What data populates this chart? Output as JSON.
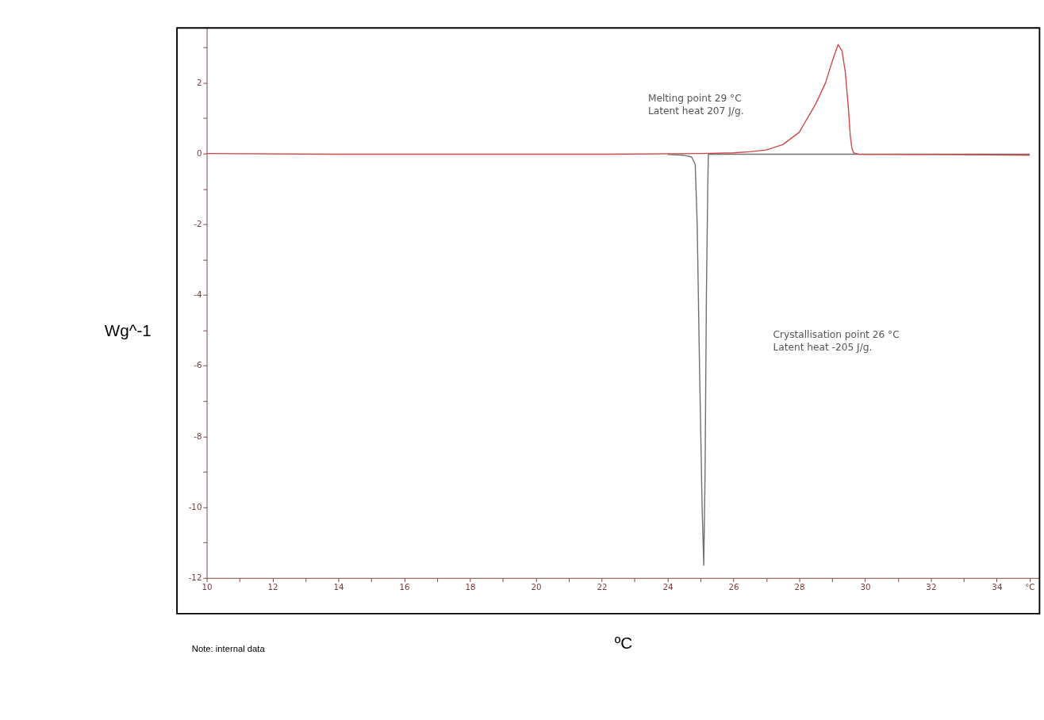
{
  "chart_data": {
    "type": "line",
    "xlabel": "ºC",
    "ylabel": "Wg^-1",
    "annotations": [
      "Melting point     29  °C\nLatent heat     207 J/g.",
      "Crystallisation point       26  °C\nLatent heat                     -205 J/g.",
      "Note: internal data"
    ],
    "xlim": [
      10,
      35.3
    ],
    "ylim": [
      -12,
      3.55
    ],
    "xticks": [
      10,
      {
        "value": 11,
        "label": null
      },
      12,
      {
        "value": 13,
        "label": null
      },
      14,
      {
        "value": 15,
        "label": null
      },
      16,
      {
        "value": 17,
        "label": null
      },
      18,
      {
        "value": 19,
        "label": null
      },
      20,
      {
        "value": 21,
        "label": null
      },
      22,
      {
        "value": 23,
        "label": null
      },
      24,
      {
        "value": 25,
        "label": null
      },
      26,
      {
        "value": 27,
        "label": null
      },
      28,
      {
        "value": 29,
        "label": null
      },
      30,
      {
        "value": 31,
        "label": null
      },
      32,
      {
        "value": 33,
        "label": null
      },
      34,
      {
        "value": 35,
        "label": "°C"
      }
    ],
    "yticks": [
      -12,
      {
        "value": -11,
        "label": null
      },
      -10,
      {
        "value": -9,
        "label": null
      },
      -8,
      {
        "value": -7,
        "label": null
      },
      -6,
      {
        "value": -5,
        "label": null
      },
      -4,
      {
        "value": -3,
        "label": null
      },
      -2,
      {
        "value": -1,
        "label": null
      },
      0,
      {
        "value": 1,
        "label": null
      },
      2,
      {
        "value": 3,
        "label": null
      }
    ],
    "grid": false,
    "legend": false,
    "marker": "none",
    "line_style": "solid",
    "series": [
      {
        "color": "#707070",
        "x": [
          24,
          24.5,
          24.73,
          24.84,
          24.9,
          24.97,
          25.05,
          25.1,
          25.14,
          25.18,
          25.22,
          25.24,
          25.3,
          28,
          32,
          35
        ],
        "values": [
          -0.03,
          -0.05,
          -0.1,
          -0.3,
          -2,
          -6,
          -10,
          -11.64,
          -9,
          -4,
          -1,
          -0.02,
          -0.02,
          -0.02,
          -0.02,
          -0.02
        ]
      },
      {
        "color": "#d04848",
        "x": [
          10,
          14,
          18,
          22,
          25,
          26,
          26.5,
          27,
          27.5,
          28,
          28.5,
          28.8,
          29,
          29.18,
          29.3,
          29.4,
          29.5,
          29.55,
          29.6,
          29.65,
          29.8,
          32,
          35
        ],
        "values": [
          0,
          -0.02,
          -0.02,
          -0.02,
          0,
          0.02,
          0.05,
          0.1,
          0.25,
          0.6,
          1.4,
          2.0,
          2.6,
          3.08,
          2.9,
          2.3,
          1.2,
          0.5,
          0.15,
          0.02,
          -0.02,
          -0.03,
          -0.05
        ]
      }
    ]
  }
}
